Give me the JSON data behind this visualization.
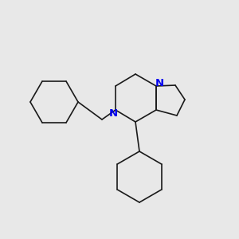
{
  "bg_color": "#e8e8e8",
  "bond_color": "#1a1a1a",
  "n_color": "#0000ee",
  "bond_width": 1.2,
  "font_size": 9.5,
  "figsize": [
    3.0,
    3.0
  ],
  "dpi": 100
}
